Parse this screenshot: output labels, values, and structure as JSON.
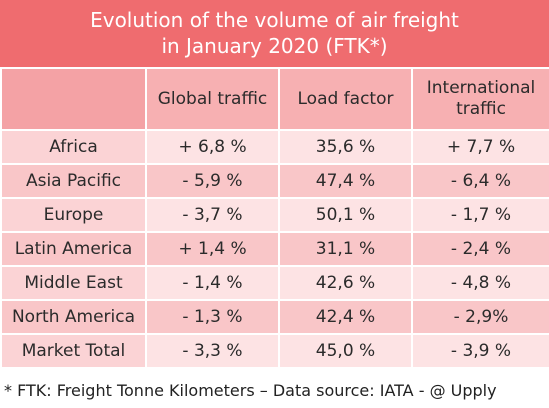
{
  "title": {
    "line1": "Evolution of the volume of air freight",
    "line2": "in January 2020 (FTK*)"
  },
  "table": {
    "headers": [
      "",
      "Global traffic",
      "Load factor",
      "International traffic"
    ],
    "header_international_line1": "International",
    "header_international_line2": "traffic",
    "rows": [
      {
        "region": "Africa",
        "global": "+ 6,8 %",
        "load": "35,6 %",
        "international": "+ 7,7 %"
      },
      {
        "region": "Asia Pacific",
        "global": "- 5,9 %",
        "load": "47,4 %",
        "international": "- 6,4 %"
      },
      {
        "region": "Europe",
        "global": "- 3,7 %",
        "load": "50,1 %",
        "international": "- 1,7 %"
      },
      {
        "region": "Latin America",
        "global": "+ 1,4 %",
        "load": "31,1 %",
        "international": "- 2,4 %"
      },
      {
        "region": "Middle East",
        "global": "- 1,4 %",
        "load": "42,6 %",
        "international": "- 4,8 %"
      },
      {
        "region": "North America",
        "global": "- 1,3 %",
        "load": "42,4 %",
        "international": "- 2,9%"
      },
      {
        "region": "Market Total",
        "global": "- 3,3 %",
        "load": "45,0 %",
        "international": "- 3,9 %"
      }
    ]
  },
  "footnote": "* FTK: Freight Tonne Kilometers – Data source: IATA - @ Upply",
  "colors": {
    "title_background": "#ef6c6f",
    "header_background": "#f7b0b2",
    "row_light": "#fde3e4",
    "row_dark": "#f9c6c8"
  }
}
